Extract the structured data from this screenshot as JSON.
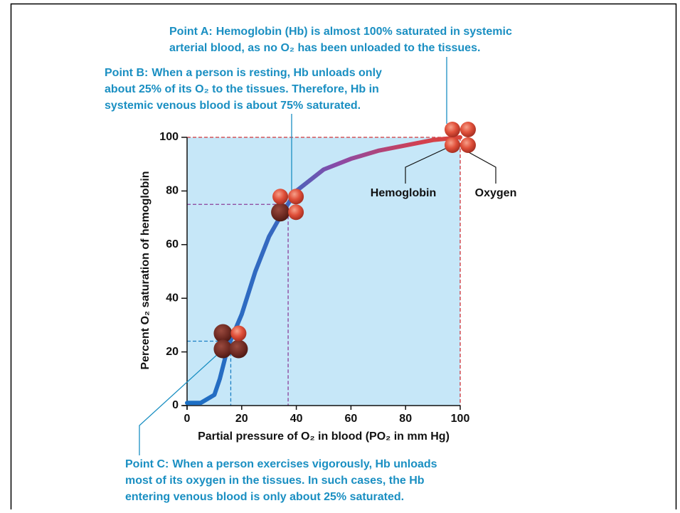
{
  "chart_data": {
    "type": "line",
    "ylabel": "Percent O₂ saturation of hemoglobin",
    "xlabel": "Partial pressure of O₂ in blood (PO₂ in mm Hg)",
    "x": [
      0,
      5,
      10,
      12,
      15,
      20,
      25,
      30,
      35,
      40,
      50,
      60,
      70,
      80,
      90,
      100
    ],
    "series": [
      {
        "values": [
          1,
          1,
          4,
          10,
          22,
          34,
          50,
          63,
          72,
          80,
          88,
          92,
          95,
          97,
          99,
          100
        ]
      }
    ],
    "xlim": [
      0,
      100
    ],
    "xticks": [
      0,
      20,
      40,
      60,
      80,
      100
    ],
    "ylim": [
      0,
      100
    ],
    "yticks": [
      0,
      20,
      40,
      60,
      80,
      100
    ],
    "area_color": "#c6e7f8",
    "reference_points": [
      {
        "label": "Point A:",
        "x": 100,
        "y": 100,
        "color": "#d0343a",
        "lines": [
          "Hemoglobin (Hb) is almost 100% saturated in systemic",
          "arterial blood, as no O₂ has been unloaded to the tissues."
        ]
      },
      {
        "label": "Point B:",
        "x": 37,
        "y": 75,
        "color": "#8a3f9a",
        "lines": [
          "When a person is resting, Hb unloads only",
          "about 25% of its O₂ to the tissues. Therefore, Hb in",
          "systemic venous blood is about 75% saturated."
        ]
      },
      {
        "label": "Point C:",
        "x": 16,
        "y": 24,
        "color": "#1b7fc4",
        "lines": [
          "When a person exercises vigorously, Hb unloads",
          "most of its oxygen in the tissues. In such cases, the Hb",
          "entering venous blood is only about 25% saturated."
        ]
      }
    ],
    "icon_labels": [
      "Hemoglobin",
      "Oxygen"
    ]
  }
}
